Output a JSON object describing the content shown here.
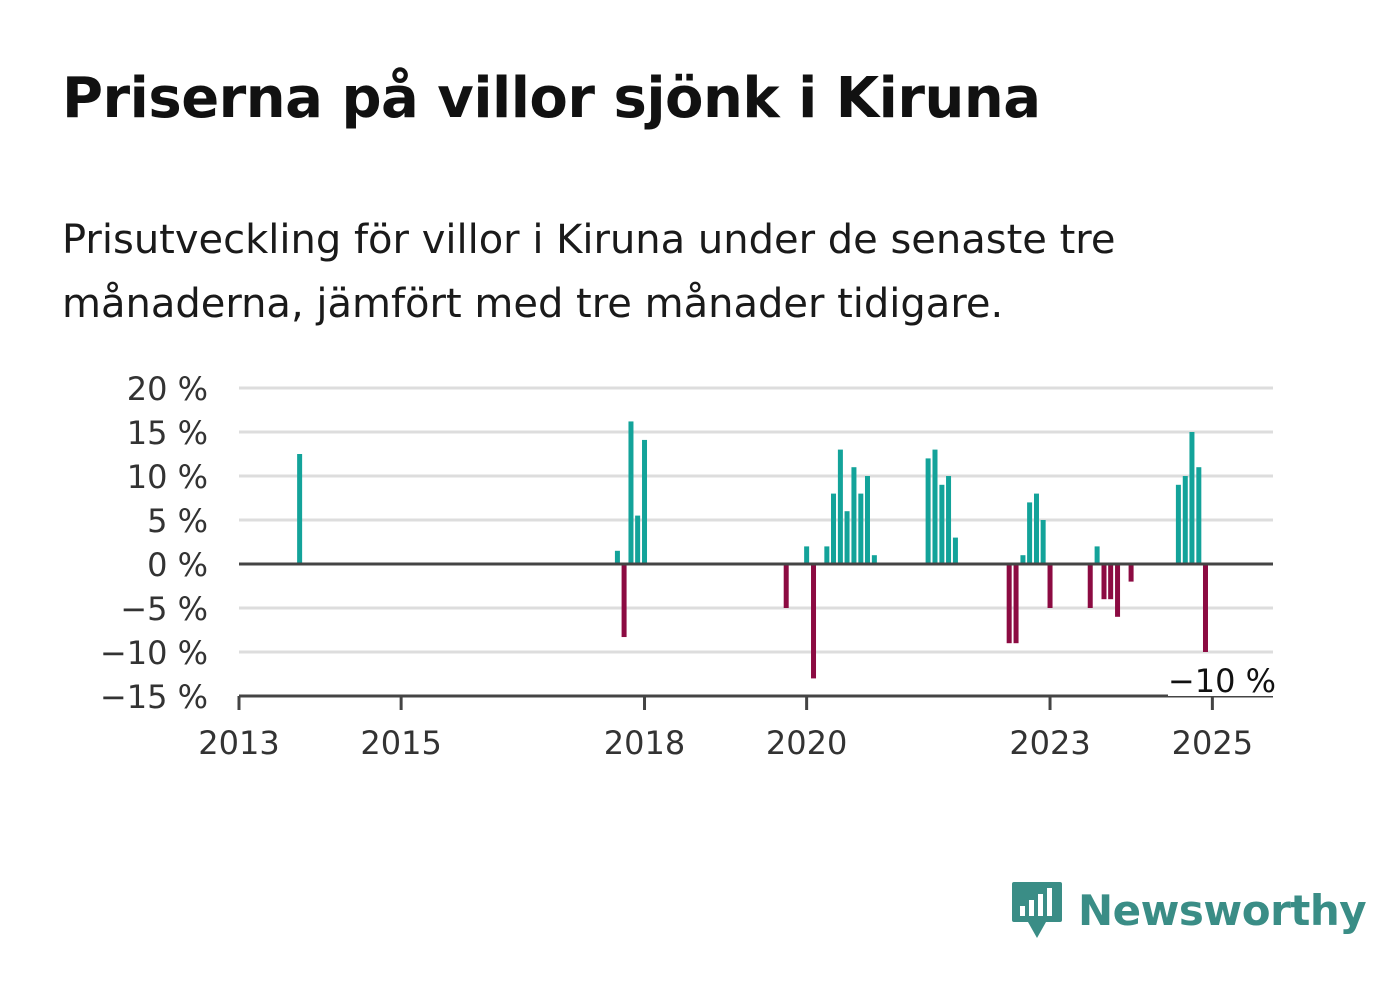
{
  "header": {
    "title": "Priserna på villor sjönk i Kiruna",
    "subtitle": "Prisutveckling för villor i Kiruna under de senaste tre månaderna, jämfört med tre månader tidigare."
  },
  "brand": {
    "name": "Newsworthy",
    "icon": "newsworthy-logo-icon",
    "color": "#3a8d86"
  },
  "colors": {
    "positive": "#13a39a",
    "negative": "#8c0b42",
    "grid": "#dddddd",
    "zero": "#444444"
  },
  "chart_data": {
    "type": "bar",
    "title": "Priserna på villor sjönk i Kiruna",
    "subtitle": "Prisutveckling för villor i Kiruna under de senaste tre månaderna, jämfört med tre månader tidigare.",
    "xlabel": "",
    "ylabel": "",
    "ylim": [
      -15,
      20
    ],
    "xlim": [
      "2013-01-01",
      "2025-10-01"
    ],
    "yticks": [
      20,
      15,
      10,
      5,
      0,
      -5,
      -10,
      -15
    ],
    "ytick_labels": [
      "20 %",
      "15 %",
      "10 %",
      "5 %",
      "0 %",
      "−5 %",
      "−10 %",
      "−15 %"
    ],
    "xticks": [
      "2013-01-01",
      "2015-01-01",
      "2018-01-01",
      "2020-01-01",
      "2023-01-01",
      "2025-01-01"
    ],
    "xtick_labels": [
      "2013",
      "2015",
      "2018",
      "2020",
      "2023",
      "2025"
    ],
    "grid": true,
    "annotation": {
      "text": "−10 %",
      "date": "2025-03-01",
      "value": -10
    },
    "series": [
      {
        "x": [
          "2013-10-01",
          "2017-09-01",
          "2017-10-01",
          "2017-11-01",
          "2017-12-01",
          "2018-01-01",
          "2019-10-01",
          "2020-01-01",
          "2020-02-01",
          "2020-04-01",
          "2020-05-01",
          "2020-06-01",
          "2020-07-01",
          "2020-08-01",
          "2020-09-01",
          "2020-10-01",
          "2020-11-01",
          "2021-07-01",
          "2021-08-01",
          "2021-09-01",
          "2021-10-01",
          "2021-11-01",
          "2022-07-01",
          "2022-08-01",
          "2022-09-01",
          "2022-10-01",
          "2022-11-01",
          "2022-12-01",
          "2023-01-01",
          "2023-07-01",
          "2023-08-01",
          "2023-09-01",
          "2023-10-01",
          "2023-11-01",
          "2024-01-01",
          "2024-08-01",
          "2024-09-01",
          "2024-10-01",
          "2024-11-01"
        ],
        "values": [
          12.5,
          1.5,
          -8.3,
          16.2,
          5.5,
          14.1,
          -5,
          2,
          -13,
          2,
          8,
          13,
          6,
          11,
          8,
          10,
          1,
          12,
          13,
          9,
          10,
          3,
          -9,
          -9,
          1,
          7,
          8,
          5,
          -5,
          -5,
          2,
          -4,
          -4,
          -6,
          -2,
          9,
          10,
          15,
          11
        ]
      }
    ],
    "series_note": "",
    "last_bar": {
      "date": "2024-12-01",
      "value": -10
    }
  }
}
